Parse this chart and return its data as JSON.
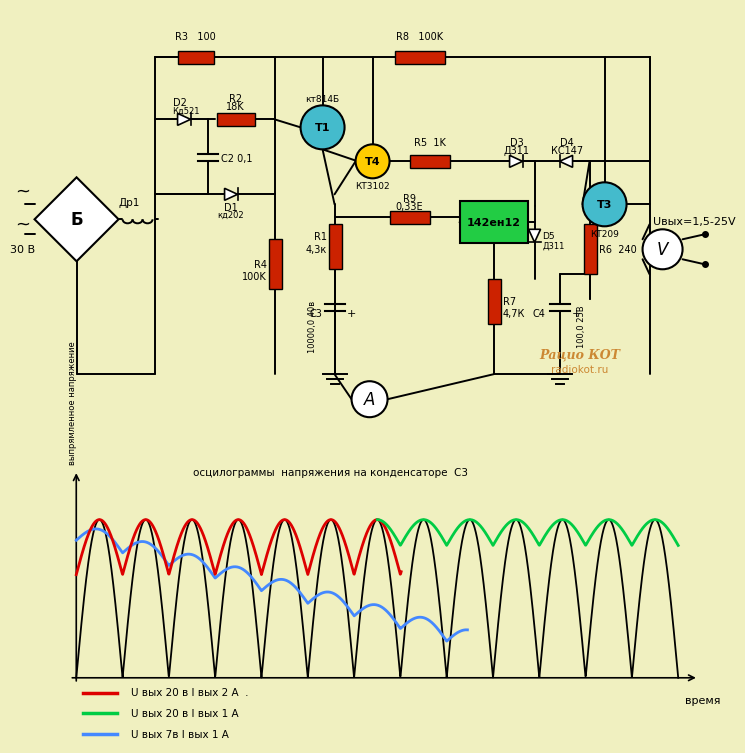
{
  "bg_color": "#f0f0c0",
  "title_osc": "осцилограммы  напряжения на конденсаторе  С3",
  "ylabel_osc": "выпрямленное напряжение",
  "xlabel_osc": "время",
  "legend": [
    {
      "label": "U вых 20 в I вых 2 А  .",
      "color": "#dd0000"
    },
    {
      "label": "U вых 20 в I вых 1 А",
      "color": "#00cc44"
    },
    {
      "label": "U вых 7в I вых 1 А",
      "color": "#4488ff"
    }
  ],
  "res_color": "#cc2200",
  "wire_color": "#000000",
  "tran_blue": "#44bbcc",
  "tran_yellow": "#ffcc00",
  "ic_green": "#22cc44",
  "radiokot_color": "#cc8833",
  "Uvyx_text": "Uвых=1,5-25V"
}
